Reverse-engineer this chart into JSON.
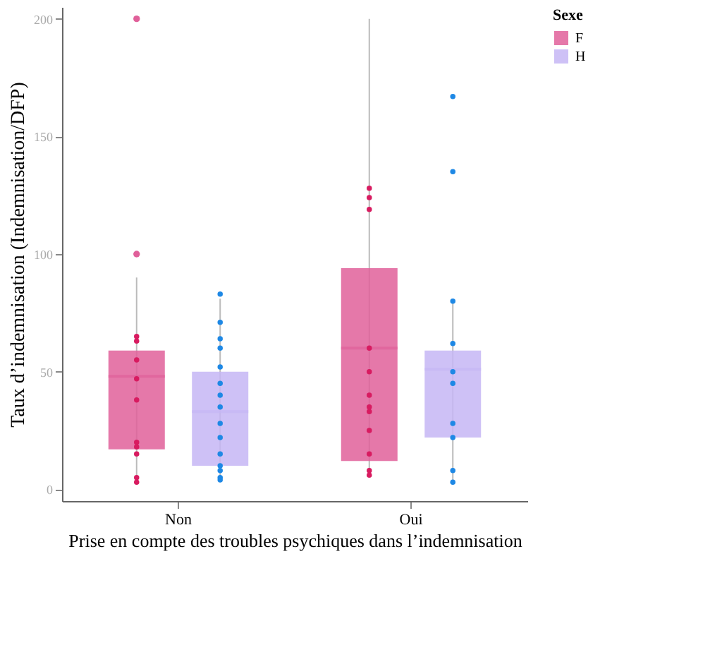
{
  "chart_data": {
    "type": "box",
    "xlabel": "Prise en compte des troubles psychiques dans l’indemnisation",
    "ylabel": "Taux d’indemnisation (Indemnisation/DFP)",
    "legend_title": "Sexe",
    "categories": [
      "Non",
      "Oui"
    ],
    "ylim": [
      -5,
      205
    ],
    "yticks": [
      0,
      50,
      100,
      150,
      200
    ],
    "grid": false,
    "legend": "right",
    "series": [
      {
        "name": "F",
        "color": "#e0609a",
        "boxes": [
          {
            "low": 2,
            "q1": 17,
            "median": 48,
            "q3": 59,
            "high": 90,
            "outliers": [
              100,
              200
            ]
          },
          {
            "low": 6,
            "q1": 12,
            "median": 60,
            "q3": 94,
            "high": 200
          }
        ]
      },
      {
        "name": "H",
        "color": "#c6b6f5",
        "boxes": [
          {
            "low": 3,
            "q1": 10,
            "median": 33,
            "q3": 50,
            "high": 81
          },
          {
            "low": 2,
            "q1": 22,
            "median": 51,
            "q3": 59,
            "high": 79
          }
        ]
      },
      {
        "type": "scatter",
        "color": "#d81b60",
        "x": [
          "Non",
          "Non",
          "Non",
          "Non",
          "Non",
          "Non",
          "Non",
          "Non",
          "Non",
          "Non",
          "Oui",
          "Oui",
          "Oui",
          "Oui",
          "Oui",
          "Oui",
          "Oui",
          "Oui",
          "Oui",
          "Oui",
          "Oui",
          "Oui"
        ],
        "values": [
          63,
          65,
          55,
          47,
          38,
          20,
          18,
          15,
          3,
          5,
          128,
          124,
          119,
          60,
          50,
          40,
          35,
          33,
          25,
          15,
          8,
          6
        ]
      },
      {
        "type": "scatter",
        "color": "#1e88e5",
        "x": [
          "Non",
          "Non",
          "Non",
          "Non",
          "Non",
          "Non",
          "Non",
          "Non",
          "Non",
          "Non",
          "Non",
          "Non",
          "Non",
          "Non",
          "Non",
          "Oui",
          "Oui",
          "Oui",
          "Oui",
          "Oui",
          "Oui",
          "Oui",
          "Oui",
          "Oui",
          "Oui"
        ],
        "values": [
          83,
          71,
          64,
          60,
          52,
          45,
          40,
          35,
          28,
          22,
          15,
          10,
          8,
          5,
          4,
          167,
          135,
          80,
          62,
          50,
          45,
          28,
          22,
          8,
          3
        ]
      }
    ]
  }
}
